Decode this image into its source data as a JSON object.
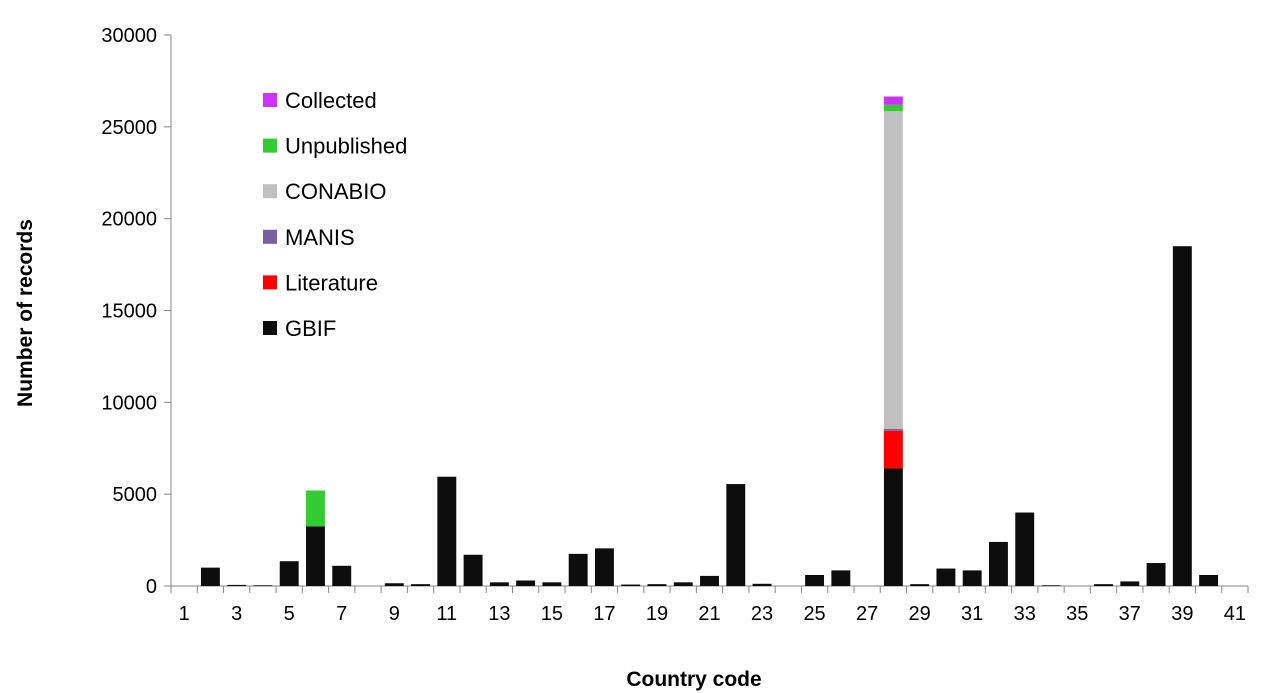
{
  "chart_data": {
    "type": "bar",
    "stacked": true,
    "title": "",
    "xlabel": "Country code",
    "ylabel": "Number of records",
    "ylim": [
      0,
      30000
    ],
    "yticks": [
      0,
      5000,
      10000,
      15000,
      20000,
      25000,
      30000
    ],
    "xtick_labels": [
      "1",
      "3",
      "5",
      "7",
      "9",
      "11",
      "13",
      "15",
      "17",
      "19",
      "21",
      "23",
      "25",
      "27",
      "29",
      "31",
      "33",
      "35",
      "37",
      "39",
      "41"
    ],
    "categories": [
      "1",
      "2",
      "3",
      "4",
      "5",
      "6",
      "7",
      "8",
      "9",
      "10",
      "11",
      "12",
      "13",
      "14",
      "15",
      "16",
      "17",
      "18",
      "19",
      "20",
      "21",
      "22",
      "23",
      "24",
      "25",
      "26",
      "27",
      "28",
      "29",
      "30",
      "31",
      "32",
      "33",
      "34",
      "35",
      "36",
      "37",
      "38",
      "39",
      "40",
      "41"
    ],
    "legend_position": "top-left",
    "series": [
      {
        "name": "GBIF",
        "color": "#0d0d0d",
        "values": [
          0,
          1000,
          60,
          40,
          1350,
          3250,
          1100,
          0,
          150,
          100,
          5950,
          1700,
          200,
          300,
          200,
          1750,
          2050,
          80,
          100,
          200,
          550,
          5550,
          120,
          0,
          600,
          850,
          0,
          6400,
          100,
          950,
          850,
          2400,
          4000,
          40,
          0,
          100,
          250,
          1250,
          18500,
          600,
          0
        ]
      },
      {
        "name": "Literature",
        "color": "#ff0000",
        "values": [
          0,
          0,
          0,
          0,
          0,
          0,
          0,
          0,
          0,
          0,
          0,
          0,
          0,
          0,
          0,
          0,
          0,
          0,
          0,
          0,
          0,
          0,
          0,
          0,
          0,
          0,
          0,
          2050,
          0,
          0,
          0,
          0,
          0,
          0,
          0,
          0,
          0,
          0,
          0,
          0,
          0
        ]
      },
      {
        "name": "MANIS",
        "color": "#7a5fa0",
        "values": [
          0,
          0,
          0,
          0,
          0,
          0,
          0,
          0,
          0,
          0,
          0,
          0,
          0,
          0,
          0,
          0,
          0,
          0,
          0,
          0,
          0,
          0,
          0,
          0,
          0,
          0,
          0,
          100,
          0,
          0,
          0,
          0,
          0,
          0,
          0,
          0,
          0,
          0,
          0,
          0,
          0
        ]
      },
      {
        "name": "CONABIO",
        "color": "#c0c0c0",
        "values": [
          0,
          0,
          0,
          0,
          0,
          0,
          0,
          0,
          0,
          0,
          0,
          0,
          0,
          0,
          0,
          0,
          0,
          0,
          0,
          0,
          0,
          0,
          0,
          0,
          0,
          0,
          0,
          17300,
          0,
          0,
          0,
          0,
          0,
          0,
          0,
          0,
          0,
          0,
          0,
          0,
          0
        ]
      },
      {
        "name": "Unpublished",
        "color": "#33cc33",
        "values": [
          0,
          0,
          0,
          0,
          0,
          1950,
          0,
          0,
          0,
          0,
          0,
          0,
          0,
          0,
          0,
          0,
          0,
          0,
          0,
          0,
          0,
          0,
          0,
          0,
          0,
          0,
          0,
          350,
          0,
          0,
          0,
          0,
          0,
          0,
          0,
          0,
          0,
          0,
          0,
          0,
          0
        ]
      },
      {
        "name": "Collected",
        "color": "#cc33ff",
        "values": [
          0,
          0,
          0,
          0,
          0,
          0,
          0,
          0,
          0,
          0,
          0,
          0,
          0,
          0,
          0,
          0,
          0,
          0,
          0,
          0,
          0,
          0,
          0,
          0,
          0,
          0,
          0,
          450,
          0,
          0,
          0,
          0,
          0,
          0,
          0,
          0,
          0,
          0,
          0,
          0,
          0
        ]
      }
    ]
  }
}
